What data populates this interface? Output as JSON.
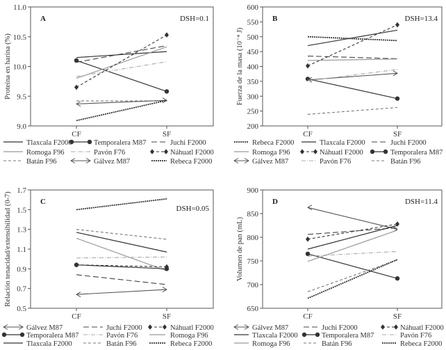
{
  "chart_data": [
    {
      "panel": "A",
      "type": "line",
      "annotation": "DSH=0.1",
      "ylabel": "Proteína en harina (%)",
      "categories": [
        "CF",
        "SF"
      ],
      "ylim": [
        9.0,
        11.0
      ],
      "yticks": [
        "9.0",
        "9.5",
        "10.0",
        "10.5",
        "11.0"
      ],
      "legend": [
        "Tlaxcala F2000",
        "Temporalera M87",
        "Juchi F2000",
        "Romoga F96",
        "Pavón F76",
        "Náhuatl F2000",
        "Batán F96",
        "Gálvez M87",
        "Rebeca F2000"
      ],
      "series": [
        {
          "name": "Tlaxcala F2000",
          "values": [
            10.15,
            10.25
          ]
        },
        {
          "name": "Temporalera M87",
          "values": [
            10.1,
            9.58
          ]
        },
        {
          "name": "Juchi F2000",
          "values": [
            10.07,
            10.35
          ]
        },
        {
          "name": "Romoga F96",
          "values": [
            9.8,
            10.33
          ]
        },
        {
          "name": "Pavón F76",
          "values": [
            9.83,
            10.08
          ]
        },
        {
          "name": "Náhuatl F2000",
          "values": [
            9.65,
            10.53
          ]
        },
        {
          "name": "Batán F96",
          "values": [
            9.42,
            9.42
          ]
        },
        {
          "name": "Gálvez M87",
          "values": [
            9.37,
            9.43
          ]
        },
        {
          "name": "Rebeca F2000",
          "values": [
            9.09,
            9.43
          ]
        }
      ]
    },
    {
      "panel": "B",
      "type": "line",
      "annotation": "DSH=13.4",
      "ylabel": "Fuerza de la masa (10⁻⁴ J)",
      "categories": [
        "CF",
        "SF"
      ],
      "ylim": [
        200,
        600
      ],
      "yticks": [
        "200",
        "250",
        "300",
        "350",
        "400",
        "450",
        "500",
        "550",
        "600"
      ],
      "legend": [
        "Rebeca F2000",
        "Tlaxcala F2000",
        "Juchi F2000",
        "Romoga F96",
        "Náhuatl F2000",
        "Temporalera M87",
        "Gálvez M87",
        "Pavón F76",
        "Batán F96"
      ],
      "series": [
        {
          "name": "Rebeca F2000",
          "values": [
            500,
            487
          ]
        },
        {
          "name": "Tlaxcala F2000",
          "values": [
            470,
            522
          ]
        },
        {
          "name": "Juchi F2000",
          "values": [
            435,
            426
          ]
        },
        {
          "name": "Romoga F96",
          "values": [
            420,
            425
          ]
        },
        {
          "name": "Náhuatl F2000",
          "values": [
            402,
            540
          ]
        },
        {
          "name": "Temporalera M87",
          "values": [
            358,
            292
          ]
        },
        {
          "name": "Gálvez M87",
          "values": [
            355,
            377
          ]
        },
        {
          "name": "Pavón F76",
          "values": [
            352,
            390
          ]
        },
        {
          "name": "Batán F96",
          "values": [
            239,
            262
          ]
        }
      ]
    },
    {
      "panel": "C",
      "type": "line",
      "annotation": "DSH=0.05",
      "ylabel": "Relación tenacidad/extensibilidad (0-7)",
      "categories": [
        "CF",
        "SF"
      ],
      "ylim": [
        0.5,
        1.7
      ],
      "yticks": [
        "0.5",
        "0.7",
        "0.9",
        "1.1",
        "1.3",
        "1.5",
        "1.7"
      ],
      "legend": [
        "Gálvez M87",
        "Juchi F2000",
        "Náhuatl F2000",
        "Temporalera M87",
        "Pavón F76",
        "Romoga F96",
        "Tlaxcala F2000",
        "Batán F96",
        "Rebeca F2000"
      ],
      "series": [
        {
          "name": "Rebeca F2000",
          "values": [
            1.5,
            1.61
          ]
        },
        {
          "name": "Batán F96",
          "values": [
            1.3,
            1.2
          ]
        },
        {
          "name": "Tlaxcala F2000",
          "values": [
            1.27,
            1.07
          ]
        },
        {
          "name": "Romoga F96",
          "values": [
            1.21,
            0.88
          ]
        },
        {
          "name": "Pavón F76",
          "values": [
            1.01,
            1.02
          ]
        },
        {
          "name": "Temporalera M87",
          "values": [
            0.94,
            0.9
          ]
        },
        {
          "name": "Náhuatl F2000",
          "values": [
            0.94,
            0.92
          ]
        },
        {
          "name": "Juchi F2000",
          "values": [
            0.84,
            0.74
          ]
        },
        {
          "name": "Gálvez M87",
          "values": [
            0.64,
            0.69
          ]
        }
      ]
    },
    {
      "panel": "D",
      "type": "line",
      "annotation": "DSH=11.4",
      "ylabel": "Volumen de pan (mL)",
      "categories": [
        "CF",
        "SF"
      ],
      "ylim": [
        650,
        900
      ],
      "yticks": [
        "650",
        "700",
        "750",
        "800",
        "850",
        "900"
      ],
      "legend": [
        "Gálvez M87",
        "Juchi F2000",
        "Náhuatl F2000",
        "Tlaxcala F2000",
        "Temporalera M87",
        "Pavón F76",
        "Romoga F96",
        "Batán F96",
        "Rebeca F2000"
      ],
      "series": [
        {
          "name": "Gálvez M87",
          "values": [
            863,
            817
          ]
        },
        {
          "name": "Juchi F2000",
          "values": [
            806,
            820
          ]
        },
        {
          "name": "Náhuatl F2000",
          "values": [
            796,
            828
          ]
        },
        {
          "name": "Tlaxcala F2000",
          "values": [
            775,
            825
          ]
        },
        {
          "name": "Temporalera M87",
          "values": [
            765,
            713
          ]
        },
        {
          "name": "Pavón F76",
          "values": [
            760,
            770
          ]
        },
        {
          "name": "Romoga F96",
          "values": [
            749,
            815
          ]
        },
        {
          "name": "Batán F96",
          "values": [
            685,
            752
          ]
        },
        {
          "name": "Rebeca F2000",
          "values": [
            671,
            753
          ]
        }
      ]
    }
  ]
}
